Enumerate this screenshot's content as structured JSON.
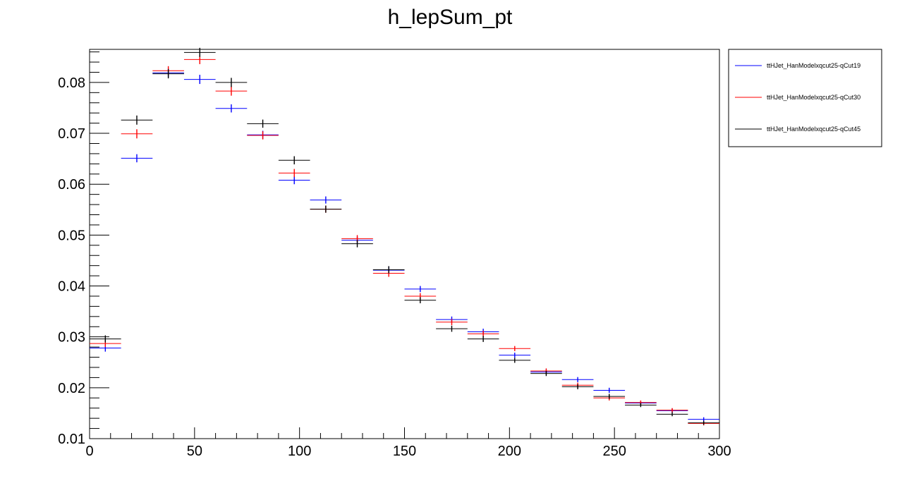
{
  "chart_data": {
    "type": "scatter",
    "title": "h_lepSum_pt",
    "xlabel": "",
    "ylabel": "",
    "xlim": [
      0,
      300
    ],
    "ylim": [
      0.01,
      0.0865
    ],
    "bin_width": 15,
    "x_ticks": [
      0,
      50,
      100,
      150,
      200,
      250,
      300
    ],
    "x_tick_labels": [
      "0",
      "50",
      "100",
      "150",
      "200",
      "250",
      "300"
    ],
    "y_ticks": [
      0.01,
      0.02,
      0.03,
      0.04,
      0.05,
      0.06,
      0.07,
      0.08
    ],
    "y_tick_labels": [
      "0.01",
      "0.02",
      "0.03",
      "0.04",
      "0.05",
      "0.06",
      "0.07",
      "0.08"
    ],
    "grid": false,
    "legend_position": "top-right, outside plot",
    "x": [
      7.5,
      22.5,
      37.5,
      52.5,
      67.5,
      82.5,
      97.5,
      112.5,
      127.5,
      142.5,
      157.5,
      172.5,
      187.5,
      202.5,
      217.5,
      232.5,
      247.5,
      262.5,
      277.5,
      292.5
    ],
    "series": [
      {
        "name": "ttHJet_HanModelxqcut25-qCut19",
        "color": "#0000ff",
        "values": [
          0.0278,
          0.0651,
          0.0819,
          0.0806,
          0.0749,
          0.0697,
          0.0608,
          0.0569,
          0.049,
          0.0431,
          0.0394,
          0.0334,
          0.031,
          0.0264,
          0.0231,
          0.0216,
          0.0195,
          0.017,
          0.0155,
          0.0138
        ],
        "errors": [
          0.0007,
          0.0008,
          0.0009,
          0.0009,
          0.0008,
          0.0008,
          0.0008,
          0.0007,
          0.0007,
          0.0007,
          0.0006,
          0.0006,
          0.0006,
          0.0005,
          0.0005,
          0.0005,
          0.0005,
          0.0004,
          0.0004,
          0.0004
        ]
      },
      {
        "name": "ttHJet_HanModelxqcut25-qCut30",
        "color": "#ff0000",
        "values": [
          0.0287,
          0.0699,
          0.0823,
          0.0845,
          0.0783,
          0.0696,
          0.0622,
          0.0551,
          0.0493,
          0.0425,
          0.038,
          0.0329,
          0.0306,
          0.0277,
          0.0233,
          0.0205,
          0.018,
          0.0171,
          0.0156,
          0.013
        ],
        "errors": [
          0.0007,
          0.0009,
          0.0009,
          0.0009,
          0.0009,
          0.0008,
          0.0008,
          0.0007,
          0.0007,
          0.0007,
          0.0006,
          0.0006,
          0.0006,
          0.0005,
          0.0005,
          0.0005,
          0.0005,
          0.0004,
          0.0004,
          0.0004
        ]
      },
      {
        "name": "ttHJet_HanModelxqcut25-qCut45",
        "color": "#000000",
        "values": [
          0.0296,
          0.0726,
          0.0817,
          0.0859,
          0.08,
          0.0719,
          0.0647,
          0.0551,
          0.0483,
          0.0432,
          0.0372,
          0.0316,
          0.0296,
          0.0254,
          0.0228,
          0.0202,
          0.0183,
          0.0166,
          0.0148,
          0.0131
        ],
        "errors": [
          0.0007,
          0.0009,
          0.0009,
          0.0009,
          0.0009,
          0.0008,
          0.0008,
          0.0007,
          0.0007,
          0.0007,
          0.0006,
          0.0006,
          0.0006,
          0.0005,
          0.0005,
          0.0005,
          0.0005,
          0.0004,
          0.0004,
          0.0004
        ]
      }
    ]
  }
}
